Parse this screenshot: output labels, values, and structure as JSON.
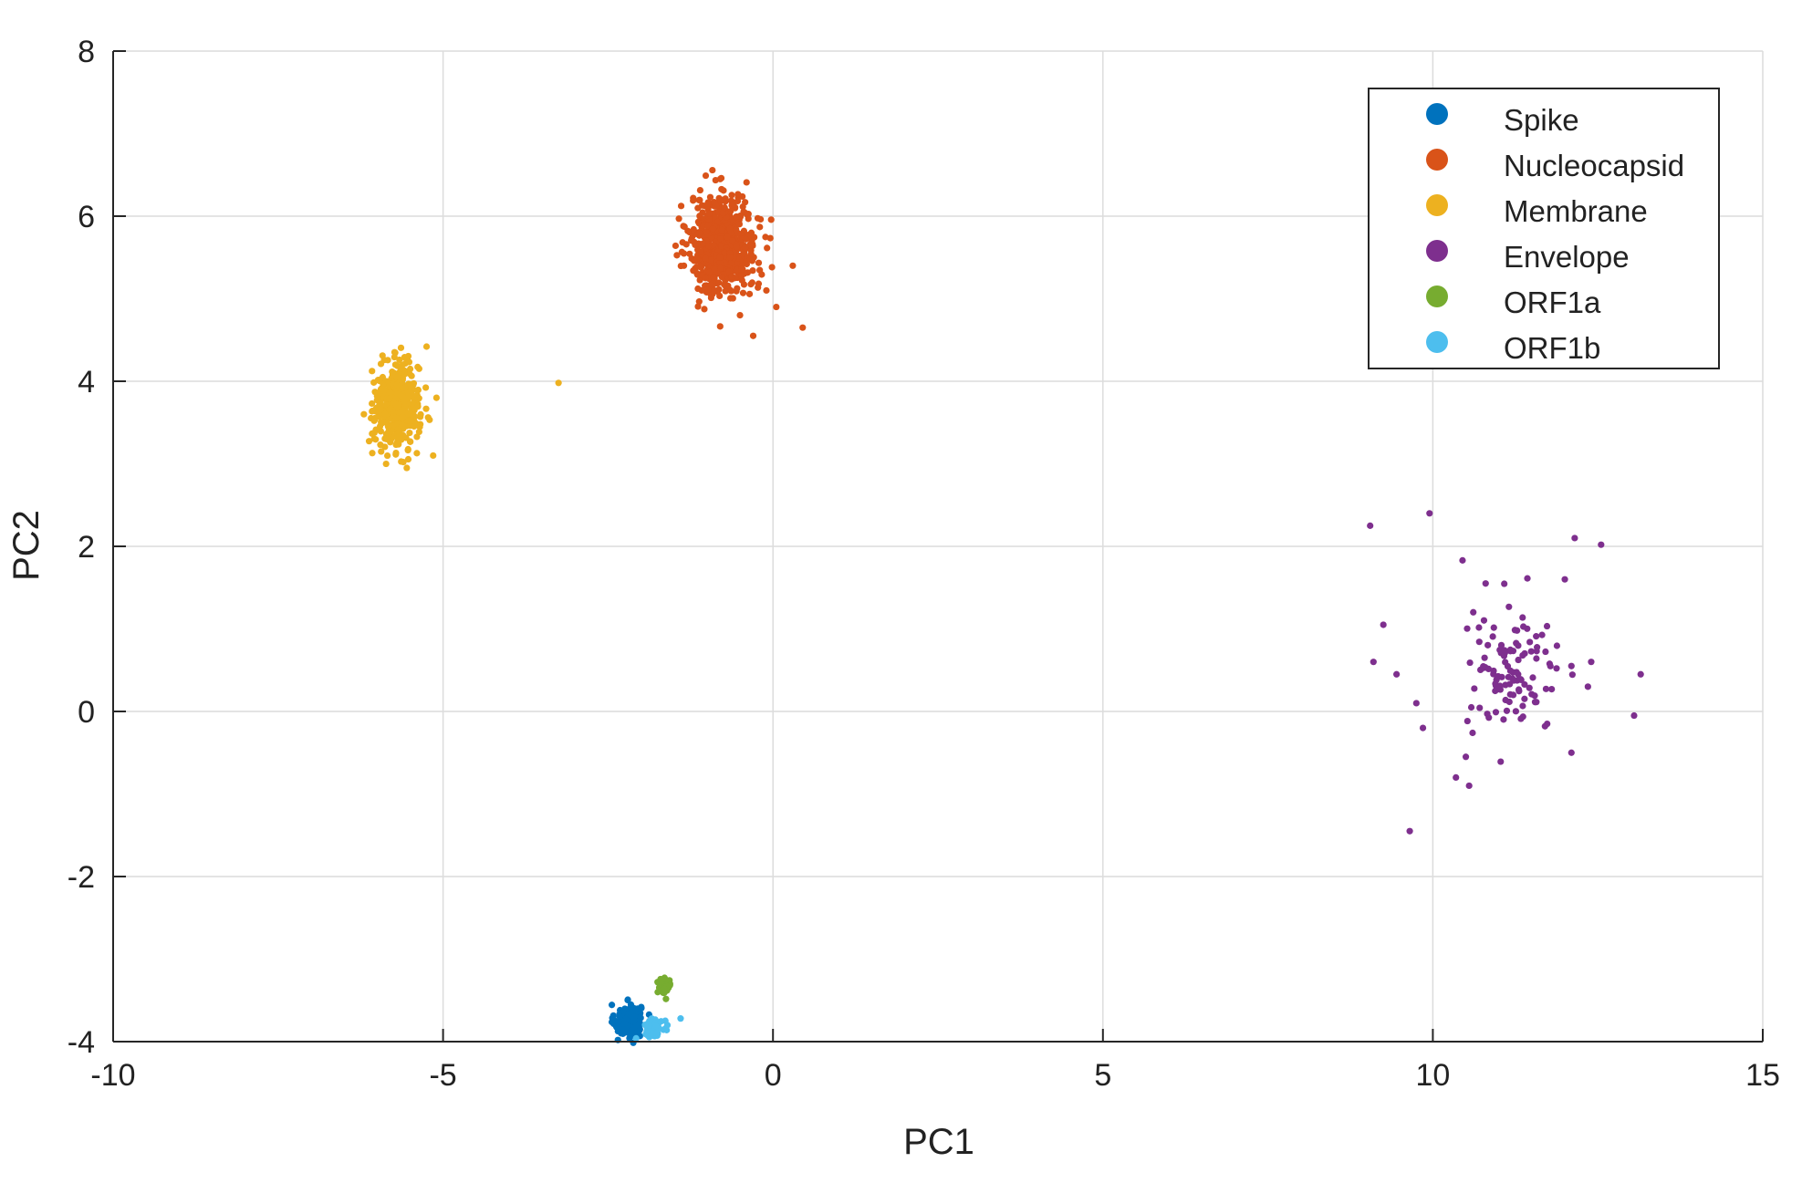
{
  "chart_data": {
    "type": "scatter",
    "xlabel": "PC1",
    "ylabel": "PC2",
    "xlim": [
      -10,
      15
    ],
    "ylim": [
      -4,
      8
    ],
    "xticks": [
      -10,
      -5,
      0,
      5,
      10,
      15
    ],
    "yticks": [
      -4,
      -2,
      0,
      2,
      4,
      6,
      8
    ],
    "grid": true,
    "legend": "top-right",
    "series": [
      {
        "name": "Spike",
        "color": "#0072BD",
        "cluster": {
          "cx": -2.2,
          "cy": -3.75,
          "sx": 0.1,
          "sy": 0.1,
          "n": 150
        },
        "points": [
          [
            -2.35,
            -3.98
          ],
          [
            -2.05,
            -3.6
          ],
          [
            -2.3,
            -3.9
          ],
          [
            -2.1,
            -3.7
          ]
        ]
      },
      {
        "name": "Nucleocapsid",
        "color": "#D95319",
        "cluster": {
          "cx": -0.75,
          "cy": 5.65,
          "sx": 0.25,
          "sy": 0.3,
          "n": 650
        },
        "points": [
          [
            0.45,
            4.65
          ],
          [
            -0.3,
            4.55
          ],
          [
            -0.8,
            6.45
          ],
          [
            -1.35,
            5.4
          ],
          [
            0.3,
            5.4
          ],
          [
            -0.1,
            5.1
          ],
          [
            0.05,
            4.9
          ],
          [
            -0.5,
            4.8
          ]
        ]
      },
      {
        "name": "Membrane",
        "color": "#EDB120",
        "cluster": {
          "cx": -5.7,
          "cy": 3.7,
          "sx": 0.17,
          "sy": 0.25,
          "n": 450
        },
        "points": [
          [
            -3.25,
            3.98
          ],
          [
            -5.25,
            4.42
          ],
          [
            -5.55,
            2.95
          ],
          [
            -5.1,
            3.8
          ],
          [
            -6.2,
            3.6
          ],
          [
            -5.15,
            3.1
          ]
        ]
      },
      {
        "name": "Envelope",
        "color": "#7E2F8E",
        "cluster": {
          "cx": 11.2,
          "cy": 0.45,
          "sx": 0.35,
          "sy": 0.35,
          "n": 110
        },
        "points": [
          [
            9.05,
            2.25
          ],
          [
            9.95,
            2.4
          ],
          [
            12.15,
            2.1
          ],
          [
            12.55,
            2.02
          ],
          [
            10.45,
            1.83
          ],
          [
            9.75,
            0.1
          ],
          [
            9.65,
            -1.45
          ],
          [
            13.15,
            0.45
          ],
          [
            13.05,
            -0.05
          ],
          [
            10.55,
            -0.9
          ],
          [
            12.1,
            -0.5
          ],
          [
            9.25,
            1.05
          ],
          [
            9.1,
            0.6
          ],
          [
            10.35,
            -0.8
          ],
          [
            12.4,
            0.6
          ],
          [
            9.45,
            0.45
          ],
          [
            12.35,
            0.3
          ],
          [
            10.8,
            1.55
          ],
          [
            12.0,
            1.6
          ],
          [
            12.1,
            0.55
          ],
          [
            9.85,
            -0.2
          ],
          [
            10.5,
            -0.55
          ]
        ]
      },
      {
        "name": "ORF1a",
        "color": "#77AC30",
        "cluster": {
          "cx": -1.65,
          "cy": -3.33,
          "sx": 0.05,
          "sy": 0.05,
          "n": 60
        },
        "points": []
      },
      {
        "name": "ORF1b",
        "color": "#4DBEEE",
        "cluster": {
          "cx": -1.8,
          "cy": -3.82,
          "sx": 0.07,
          "sy": 0.05,
          "n": 80
        },
        "points": [
          [
            -1.4,
            -3.72
          ],
          [
            -1.6,
            -3.8
          ]
        ]
      }
    ]
  }
}
